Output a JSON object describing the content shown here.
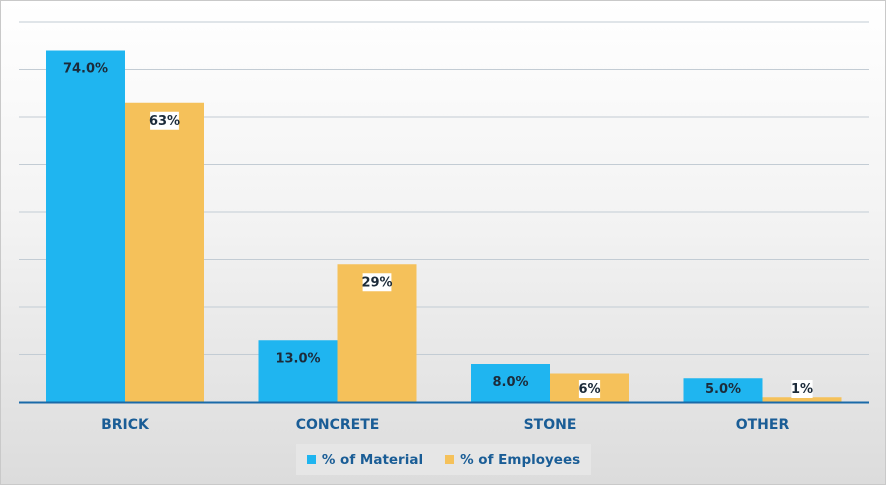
{
  "chart_data": {
    "type": "bar",
    "title": "",
    "xlabel": "",
    "ylabel": "",
    "ylim": [
      0,
      80
    ],
    "grid": true,
    "legend_position": "bottom-center",
    "categories": [
      "BRICK",
      "CONCRETE",
      "STONE",
      "OTHER"
    ],
    "series": [
      {
        "name": "% of Material",
        "color": "#1fb5f0",
        "values": [
          74,
          13,
          8,
          5
        ],
        "labels": [
          "74.0%",
          "13.0%",
          "8.0%",
          "5.0%"
        ]
      },
      {
        "name": "% of Employees",
        "color": "#f5c15a",
        "values": [
          63,
          29,
          6,
          1
        ],
        "labels": [
          "63%",
          "29%",
          "6%",
          "1%"
        ]
      }
    ]
  },
  "colors": {
    "axis": "#1a6aa8",
    "category_text": "#1a5d96",
    "legend_text": "#1a5d96",
    "value_text": "#1c2b3a",
    "gridline": "#c3ccd4"
  }
}
